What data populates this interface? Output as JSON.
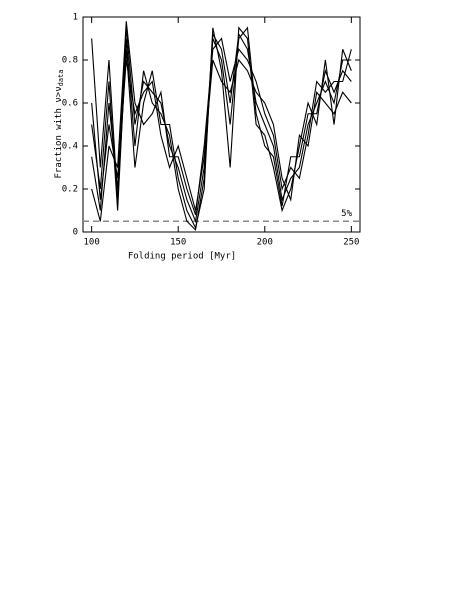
{
  "chart_data": {
    "type": "line",
    "xlabel": "Folding period [Myr]",
    "ylabel": "Fraction with ν>ν",
    "ylabel_subscript": "data",
    "xlim": [
      95,
      255
    ],
    "ylim": [
      0,
      1
    ],
    "xticks": [
      100,
      150,
      200,
      250
    ],
    "yticks": [
      0,
      0.2,
      0.4,
      0.6,
      0.8,
      1
    ],
    "reference_line": {
      "value": 0.05,
      "label": "5%",
      "color": "#888888"
    },
    "x": [
      100,
      105,
      110,
      115,
      120,
      125,
      130,
      135,
      140,
      145,
      150,
      155,
      160,
      165,
      170,
      175,
      180,
      185,
      190,
      195,
      200,
      205,
      210,
      215,
      220,
      225,
      230,
      235,
      240,
      245,
      250
    ],
    "series": [
      {
        "color": "#000000",
        "values": [
          0.35,
          0.1,
          0.6,
          0.2,
          0.95,
          0.5,
          0.7,
          0.65,
          0.6,
          0.4,
          0.3,
          0.15,
          0.05,
          0.3,
          0.92,
          0.85,
          0.6,
          0.92,
          0.85,
          0.6,
          0.5,
          0.4,
          0.15,
          0.25,
          0.3,
          0.5,
          0.6,
          0.7,
          0.6,
          0.8,
          0.8
        ]
      },
      {
        "color": "#000000",
        "values": [
          0.9,
          0.3,
          0.8,
          0.15,
          0.85,
          0.3,
          0.6,
          0.75,
          0.5,
          0.5,
          0.25,
          0.1,
          0.02,
          0.2,
          0.95,
          0.75,
          0.3,
          0.95,
          0.9,
          0.5,
          0.45,
          0.3,
          0.1,
          0.2,
          0.4,
          0.6,
          0.5,
          0.8,
          0.5,
          0.85,
          0.75
        ]
      },
      {
        "color": "#000000",
        "values": [
          0.2,
          0.05,
          0.4,
          0.3,
          0.98,
          0.6,
          0.5,
          0.55,
          0.65,
          0.35,
          0.35,
          0.2,
          0.08,
          0.4,
          0.85,
          0.9,
          0.7,
          0.85,
          0.8,
          0.7,
          0.55,
          0.45,
          0.2,
          0.3,
          0.25,
          0.45,
          0.7,
          0.65,
          0.7,
          0.7,
          0.85
        ]
      },
      {
        "color": "#000000",
        "values": [
          0.5,
          0.2,
          0.7,
          0.1,
          0.9,
          0.4,
          0.75,
          0.6,
          0.55,
          0.45,
          0.2,
          0.05,
          0.01,
          0.25,
          0.9,
          0.8,
          0.5,
          0.9,
          0.95,
          0.55,
          0.4,
          0.35,
          0.12,
          0.35,
          0.35,
          0.55,
          0.55,
          0.75,
          0.65,
          0.75,
          0.7
        ]
      },
      {
        "color": "#000000",
        "values": [
          0.6,
          0.15,
          0.5,
          0.25,
          0.8,
          0.55,
          0.65,
          0.7,
          0.45,
          0.3,
          0.4,
          0.25,
          0.1,
          0.35,
          0.8,
          0.7,
          0.65,
          0.8,
          0.75,
          0.65,
          0.6,
          0.5,
          0.25,
          0.15,
          0.45,
          0.4,
          0.65,
          0.6,
          0.55,
          0.65,
          0.6
        ]
      }
    ]
  }
}
